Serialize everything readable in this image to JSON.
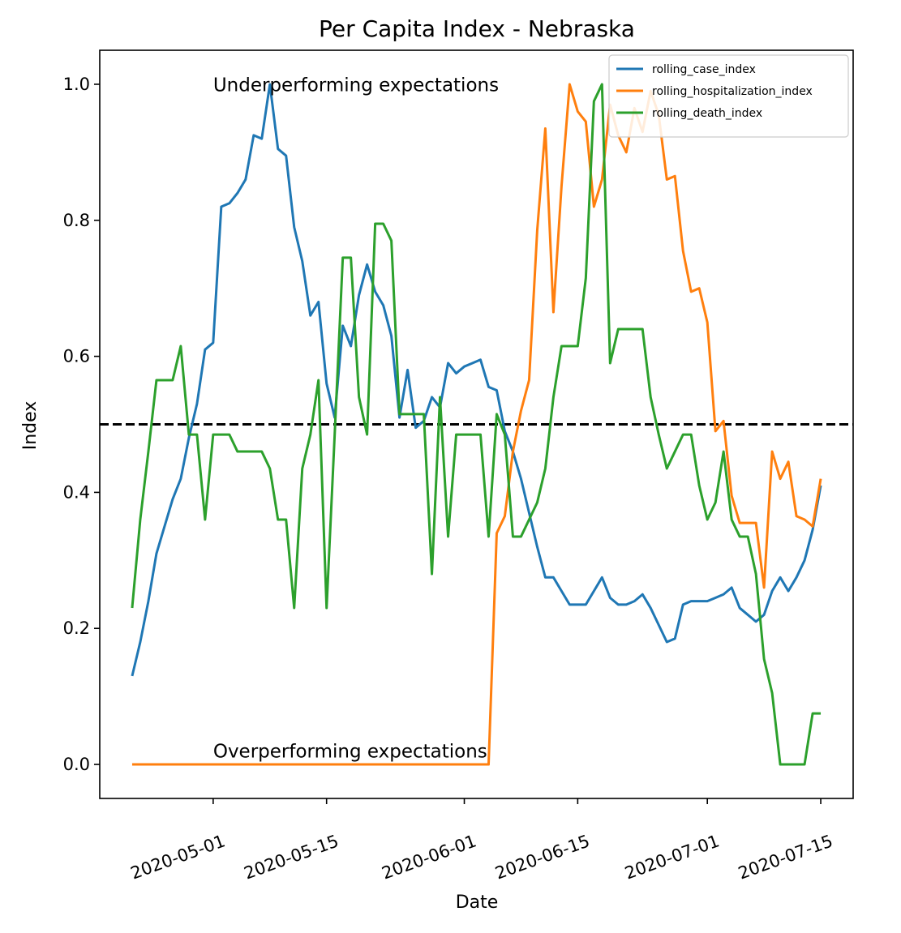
{
  "chart_data": {
    "type": "line",
    "title": "Per Capita Index - Nebraska",
    "xlabel": "Date",
    "ylabel": "Index",
    "x_type": "date",
    "xlim": [
      "2020-04-17",
      "2020-07-19"
    ],
    "ylim": [
      -0.05,
      1.05
    ],
    "x_ticks": [
      "2020-05-01",
      "2020-05-15",
      "2020-06-01",
      "2020-06-15",
      "2020-07-01",
      "2020-07-15"
    ],
    "y_ticks": [
      "0.0",
      "0.2",
      "0.4",
      "0.6",
      "0.8",
      "1.0"
    ],
    "grid": false,
    "legend_position": "top-right",
    "reference_line": {
      "y": 0.5,
      "style": "dashed",
      "color": "#000000"
    },
    "annotations": [
      {
        "text": "Underperforming expectations",
        "x": "2020-05-01",
        "y": 0.99
      },
      {
        "text": "Overperforming expectations",
        "x": "2020-05-01",
        "y": 0.01
      }
    ],
    "series": [
      {
        "name": "rolling_case_index",
        "color": "#1f77b4",
        "points": [
          [
            "2020-04-21",
            0.13
          ],
          [
            "2020-04-22",
            0.18
          ],
          [
            "2020-04-23",
            0.24
          ],
          [
            "2020-04-24",
            0.31
          ],
          [
            "2020-04-25",
            0.35
          ],
          [
            "2020-04-26",
            0.39
          ],
          [
            "2020-04-27",
            0.42
          ],
          [
            "2020-04-28",
            0.48
          ],
          [
            "2020-04-29",
            0.53
          ],
          [
            "2020-04-30",
            0.61
          ],
          [
            "2020-05-01",
            0.62
          ],
          [
            "2020-05-02",
            0.82
          ],
          [
            "2020-05-03",
            0.825
          ],
          [
            "2020-05-04",
            0.84
          ],
          [
            "2020-05-05",
            0.86
          ],
          [
            "2020-05-06",
            0.925
          ],
          [
            "2020-05-07",
            0.92
          ],
          [
            "2020-05-08",
            1.0
          ],
          [
            "2020-05-09",
            0.905
          ],
          [
            "2020-05-10",
            0.895
          ],
          [
            "2020-05-11",
            0.79
          ],
          [
            "2020-05-12",
            0.74
          ],
          [
            "2020-05-13",
            0.66
          ],
          [
            "2020-05-14",
            0.68
          ],
          [
            "2020-05-15",
            0.56
          ],
          [
            "2020-05-16",
            0.51
          ],
          [
            "2020-05-17",
            0.645
          ],
          [
            "2020-05-18",
            0.615
          ],
          [
            "2020-05-19",
            0.69
          ],
          [
            "2020-05-20",
            0.735
          ],
          [
            "2020-05-21",
            0.695
          ],
          [
            "2020-05-22",
            0.675
          ],
          [
            "2020-05-23",
            0.63
          ],
          [
            "2020-05-24",
            0.51
          ],
          [
            "2020-05-25",
            0.58
          ],
          [
            "2020-05-26",
            0.495
          ],
          [
            "2020-05-27",
            0.505
          ],
          [
            "2020-05-28",
            0.54
          ],
          [
            "2020-05-29",
            0.525
          ],
          [
            "2020-05-30",
            0.59
          ],
          [
            "2020-05-31",
            0.575
          ],
          [
            "2020-06-01",
            0.585
          ],
          [
            "2020-06-02",
            0.59
          ],
          [
            "2020-06-03",
            0.595
          ],
          [
            "2020-06-04",
            0.555
          ],
          [
            "2020-06-05",
            0.55
          ],
          [
            "2020-06-06",
            0.49
          ],
          [
            "2020-06-07",
            0.46
          ],
          [
            "2020-06-08",
            0.42
          ],
          [
            "2020-06-09",
            0.37
          ],
          [
            "2020-06-10",
            0.32
          ],
          [
            "2020-06-11",
            0.275
          ],
          [
            "2020-06-12",
            0.275
          ],
          [
            "2020-06-13",
            0.255
          ],
          [
            "2020-06-14",
            0.235
          ],
          [
            "2020-06-16",
            0.235
          ],
          [
            "2020-06-17",
            0.255
          ],
          [
            "2020-06-18",
            0.275
          ],
          [
            "2020-06-19",
            0.245
          ],
          [
            "2020-06-20",
            0.235
          ],
          [
            "2020-06-21",
            0.235
          ],
          [
            "2020-06-22",
            0.24
          ],
          [
            "2020-06-23",
            0.25
          ],
          [
            "2020-06-24",
            0.23
          ],
          [
            "2020-06-25",
            0.205
          ],
          [
            "2020-06-26",
            0.18
          ],
          [
            "2020-06-27",
            0.185
          ],
          [
            "2020-06-28",
            0.235
          ],
          [
            "2020-06-29",
            0.24
          ],
          [
            "2020-06-30",
            0.24
          ],
          [
            "2020-07-01",
            0.24
          ],
          [
            "2020-07-02",
            0.245
          ],
          [
            "2020-07-03",
            0.25
          ],
          [
            "2020-07-04",
            0.26
          ],
          [
            "2020-07-05",
            0.23
          ],
          [
            "2020-07-06",
            0.22
          ],
          [
            "2020-07-07",
            0.21
          ],
          [
            "2020-07-08",
            0.22
          ],
          [
            "2020-07-09",
            0.255
          ],
          [
            "2020-07-10",
            0.275
          ],
          [
            "2020-07-11",
            0.255
          ],
          [
            "2020-07-12",
            0.275
          ],
          [
            "2020-07-13",
            0.3
          ],
          [
            "2020-07-14",
            0.345
          ],
          [
            "2020-07-15",
            0.41
          ]
        ]
      },
      {
        "name": "rolling_hospitalization_index",
        "color": "#ff7f0e",
        "points": [
          [
            "2020-04-21",
            0.0
          ],
          [
            "2020-06-04",
            0.0
          ],
          [
            "2020-06-05",
            0.34
          ],
          [
            "2020-06-06",
            0.365
          ],
          [
            "2020-06-07",
            0.46
          ],
          [
            "2020-06-08",
            0.52
          ],
          [
            "2020-06-09",
            0.565
          ],
          [
            "2020-06-10",
            0.785
          ],
          [
            "2020-06-11",
            0.935
          ],
          [
            "2020-06-12",
            0.665
          ],
          [
            "2020-06-13",
            0.85
          ],
          [
            "2020-06-14",
            1.0
          ],
          [
            "2020-06-15",
            0.96
          ],
          [
            "2020-06-16",
            0.945
          ],
          [
            "2020-06-17",
            0.82
          ],
          [
            "2020-06-18",
            0.86
          ],
          [
            "2020-06-19",
            0.97
          ],
          [
            "2020-06-20",
            0.925
          ],
          [
            "2020-06-21",
            0.9
          ],
          [
            "2020-06-22",
            0.965
          ],
          [
            "2020-06-23",
            0.93
          ],
          [
            "2020-06-24",
            0.99
          ],
          [
            "2020-06-25",
            0.955
          ],
          [
            "2020-06-26",
            0.86
          ],
          [
            "2020-06-27",
            0.865
          ],
          [
            "2020-06-28",
            0.755
          ],
          [
            "2020-06-29",
            0.695
          ],
          [
            "2020-06-30",
            0.7
          ],
          [
            "2020-07-01",
            0.65
          ],
          [
            "2020-07-02",
            0.49
          ],
          [
            "2020-07-03",
            0.505
          ],
          [
            "2020-07-04",
            0.395
          ],
          [
            "2020-07-05",
            0.355
          ],
          [
            "2020-07-06",
            0.355
          ],
          [
            "2020-07-07",
            0.355
          ],
          [
            "2020-07-08",
            0.26
          ],
          [
            "2020-07-09",
            0.46
          ],
          [
            "2020-07-10",
            0.42
          ],
          [
            "2020-07-11",
            0.445
          ],
          [
            "2020-07-12",
            0.365
          ],
          [
            "2020-07-13",
            0.36
          ],
          [
            "2020-07-14",
            0.35
          ],
          [
            "2020-07-15",
            0.42
          ]
        ]
      },
      {
        "name": "rolling_death_index",
        "color": "#2ca02c",
        "points": [
          [
            "2020-04-21",
            0.23
          ],
          [
            "2020-04-22",
            0.36
          ],
          [
            "2020-04-23",
            0.46
          ],
          [
            "2020-04-24",
            0.565
          ],
          [
            "2020-04-25",
            0.565
          ],
          [
            "2020-04-26",
            0.565
          ],
          [
            "2020-04-27",
            0.615
          ],
          [
            "2020-04-28",
            0.485
          ],
          [
            "2020-04-29",
            0.485
          ],
          [
            "2020-04-30",
            0.36
          ],
          [
            "2020-05-01",
            0.485
          ],
          [
            "2020-05-02",
            0.485
          ],
          [
            "2020-05-03",
            0.485
          ],
          [
            "2020-05-04",
            0.46
          ],
          [
            "2020-05-05",
            0.46
          ],
          [
            "2020-05-06",
            0.46
          ],
          [
            "2020-05-07",
            0.46
          ],
          [
            "2020-05-08",
            0.435
          ],
          [
            "2020-05-09",
            0.36
          ],
          [
            "2020-05-10",
            0.36
          ],
          [
            "2020-05-11",
            0.23
          ],
          [
            "2020-05-12",
            0.435
          ],
          [
            "2020-05-13",
            0.485
          ],
          [
            "2020-05-14",
            0.565
          ],
          [
            "2020-05-15",
            0.23
          ],
          [
            "2020-05-16",
            0.485
          ],
          [
            "2020-05-17",
            0.745
          ],
          [
            "2020-05-18",
            0.745
          ],
          [
            "2020-05-19",
            0.54
          ],
          [
            "2020-05-20",
            0.485
          ],
          [
            "2020-05-21",
            0.795
          ],
          [
            "2020-05-22",
            0.795
          ],
          [
            "2020-05-23",
            0.77
          ],
          [
            "2020-05-24",
            0.515
          ],
          [
            "2020-05-25",
            0.515
          ],
          [
            "2020-05-26",
            0.515
          ],
          [
            "2020-05-27",
            0.515
          ],
          [
            "2020-05-28",
            0.28
          ],
          [
            "2020-05-29",
            0.54
          ],
          [
            "2020-05-30",
            0.335
          ],
          [
            "2020-05-31",
            0.485
          ],
          [
            "2020-06-01",
            0.485
          ],
          [
            "2020-06-02",
            0.485
          ],
          [
            "2020-06-03",
            0.485
          ],
          [
            "2020-06-04",
            0.335
          ],
          [
            "2020-06-05",
            0.515
          ],
          [
            "2020-06-06",
            0.485
          ],
          [
            "2020-06-07",
            0.335
          ],
          [
            "2020-06-08",
            0.335
          ],
          [
            "2020-06-09",
            0.36
          ],
          [
            "2020-06-10",
            0.385
          ],
          [
            "2020-06-11",
            0.435
          ],
          [
            "2020-06-12",
            0.54
          ],
          [
            "2020-06-13",
            0.615
          ],
          [
            "2020-06-14",
            0.615
          ],
          [
            "2020-06-15",
            0.615
          ],
          [
            "2020-06-16",
            0.715
          ],
          [
            "2020-06-17",
            0.975
          ],
          [
            "2020-06-18",
            1.0
          ],
          [
            "2020-06-19",
            0.59
          ],
          [
            "2020-06-20",
            0.64
          ],
          [
            "2020-06-21",
            0.64
          ],
          [
            "2020-06-22",
            0.64
          ],
          [
            "2020-06-23",
            0.64
          ],
          [
            "2020-06-24",
            0.54
          ],
          [
            "2020-06-25",
            0.485
          ],
          [
            "2020-06-26",
            0.435
          ],
          [
            "2020-06-27",
            0.46
          ],
          [
            "2020-06-28",
            0.485
          ],
          [
            "2020-06-29",
            0.485
          ],
          [
            "2020-06-30",
            0.41
          ],
          [
            "2020-07-01",
            0.36
          ],
          [
            "2020-07-02",
            0.385
          ],
          [
            "2020-07-03",
            0.46
          ],
          [
            "2020-07-04",
            0.36
          ],
          [
            "2020-07-05",
            0.335
          ],
          [
            "2020-07-06",
            0.335
          ],
          [
            "2020-07-07",
            0.28
          ],
          [
            "2020-07-08",
            0.155
          ],
          [
            "2020-07-09",
            0.105
          ],
          [
            "2020-07-10",
            0.0
          ],
          [
            "2020-07-11",
            0.0
          ],
          [
            "2020-07-12",
            0.0
          ],
          [
            "2020-07-13",
            0.0
          ],
          [
            "2020-07-14",
            0.075
          ],
          [
            "2020-07-15",
            0.075
          ]
        ]
      }
    ]
  }
}
